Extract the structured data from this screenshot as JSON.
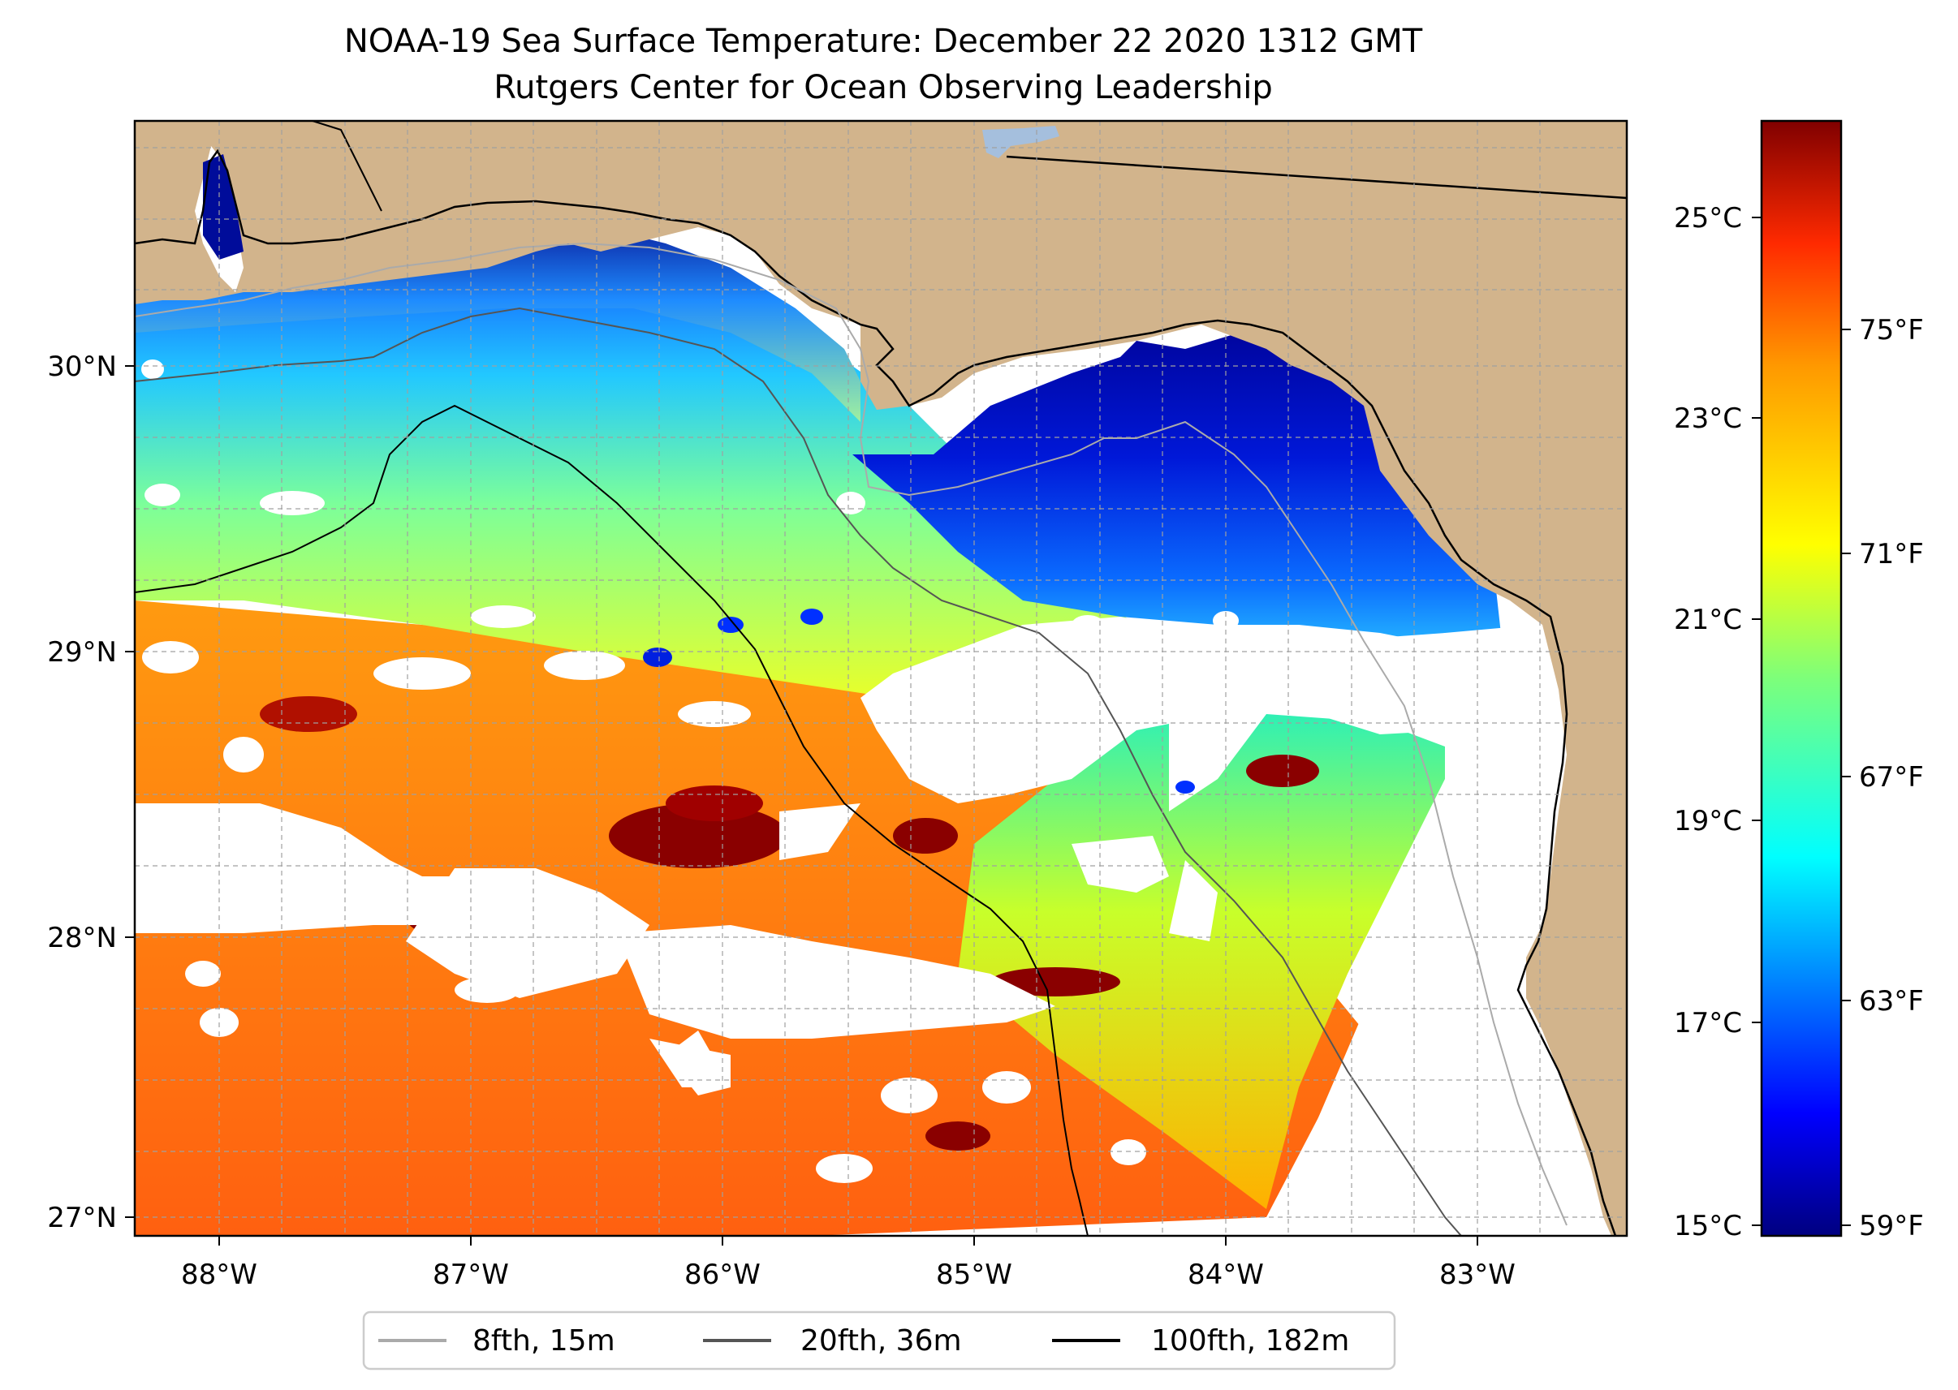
{
  "title": {
    "line1": "NOAA-19 Sea Surface Temperature: December 22 2020 1312 GMT",
    "line2": "Rutgers Center for Ocean Observing Leadership"
  },
  "map": {
    "lon_ticks": [
      {
        "value": -88,
        "label": "88°W"
      },
      {
        "value": -87,
        "label": "87°W"
      },
      {
        "value": -86,
        "label": "86°W"
      },
      {
        "value": -85,
        "label": "85°W"
      },
      {
        "value": -84,
        "label": "84°W"
      },
      {
        "value": -83,
        "label": "83°W"
      }
    ],
    "lat_ticks": [
      {
        "value": 30,
        "label": "30°N"
      },
      {
        "value": 29,
        "label": "29°N"
      },
      {
        "value": 28,
        "label": "28°N"
      },
      {
        "value": 27,
        "label": "27°N"
      }
    ],
    "lon_range": [
      -88.33,
      -82.4
    ],
    "lat_range": [
      26.94,
      30.87
    ],
    "grid": true,
    "land_color": "#d2b48c",
    "water_color": "#a5bfdd"
  },
  "colorbar": {
    "colormap": "jet",
    "celsius_range": [
      14.9,
      25.9
    ],
    "celsius_ticks": [
      {
        "value": 15,
        "label": "15°C"
      },
      {
        "value": 17,
        "label": "17°C"
      },
      {
        "value": 19,
        "label": "19°C"
      },
      {
        "value": 21,
        "label": "21°C"
      },
      {
        "value": 23,
        "label": "23°C"
      },
      {
        "value": 25,
        "label": "25°C"
      }
    ],
    "fahrenheit_ticks": [
      {
        "value": 59,
        "label": "59°F"
      },
      {
        "value": 63,
        "label": "63°F"
      },
      {
        "value": 67,
        "label": "67°F"
      },
      {
        "value": 71,
        "label": "71°F"
      },
      {
        "value": 75,
        "label": "75°F"
      }
    ]
  },
  "legend": {
    "placement": "bottom-center",
    "items": [
      {
        "label": "8fth, 15m",
        "color": "#aaaaaa"
      },
      {
        "label": "20fth, 36m",
        "color": "#555555"
      },
      {
        "label": "100fth, 182m",
        "color": "#000000"
      }
    ]
  }
}
